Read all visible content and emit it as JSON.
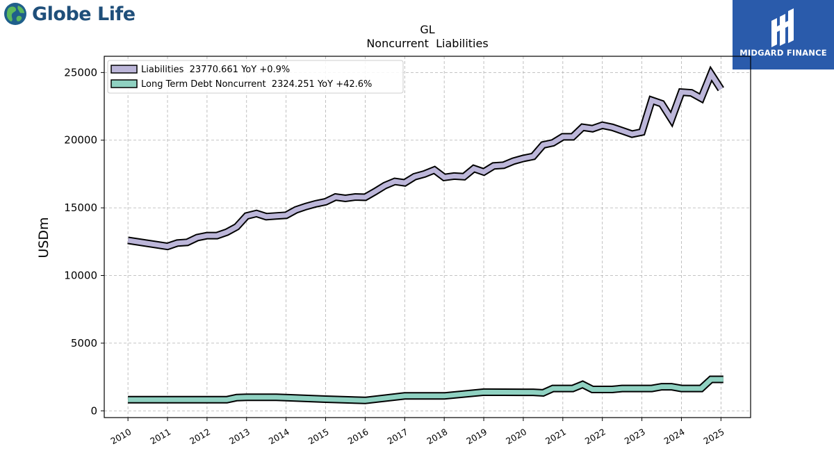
{
  "branding": {
    "left_name": "Globe Life",
    "right_name": "MIDGARD FINANCE",
    "left_icon": "globe-icon",
    "right_icon": "midgard-m-logo-icon"
  },
  "chart_data": {
    "type": "line",
    "title": "GL",
    "subtitle": "Noncurrent  Liabilities",
    "xlabel": "",
    "ylabel": "USDm",
    "xlim": [
      2009.4,
      2025.75
    ],
    "ylim": [
      -500,
      26200
    ],
    "yticks": [
      0,
      5000,
      10000,
      15000,
      20000,
      25000
    ],
    "xticks": [
      "2010",
      "2011",
      "2012",
      "2013",
      "2014",
      "2015",
      "2016",
      "2017",
      "2018",
      "2019",
      "2020",
      "2021",
      "2022",
      "2023",
      "2024",
      "2025"
    ],
    "grid": true,
    "legend_position": "top-left",
    "series": [
      {
        "name": "Liabilities  23770.661 YoY +0.9%",
        "color": "#bcb6d9",
        "points": [
          [
            2010.0,
            12600
          ],
          [
            2011.0,
            12150
          ],
          [
            2011.25,
            12400
          ],
          [
            2011.5,
            12450
          ],
          [
            2011.75,
            12800
          ],
          [
            2012.0,
            12950
          ],
          [
            2012.25,
            12950
          ],
          [
            2012.5,
            13200
          ],
          [
            2012.75,
            13600
          ],
          [
            2013.0,
            14400
          ],
          [
            2013.25,
            14580
          ],
          [
            2013.5,
            14350
          ],
          [
            2013.75,
            14400
          ],
          [
            2014.0,
            14450
          ],
          [
            2014.25,
            14850
          ],
          [
            2014.5,
            15100
          ],
          [
            2014.75,
            15300
          ],
          [
            2015.0,
            15450
          ],
          [
            2015.25,
            15800
          ],
          [
            2015.5,
            15700
          ],
          [
            2015.75,
            15800
          ],
          [
            2016.0,
            15780
          ],
          [
            2016.25,
            16200
          ],
          [
            2016.5,
            16650
          ],
          [
            2016.75,
            16950
          ],
          [
            2017.0,
            16850
          ],
          [
            2017.25,
            17300
          ],
          [
            2017.5,
            17500
          ],
          [
            2017.75,
            17800
          ],
          [
            2018.0,
            17250
          ],
          [
            2018.25,
            17350
          ],
          [
            2018.5,
            17300
          ],
          [
            2018.75,
            17900
          ],
          [
            2019.0,
            17650
          ],
          [
            2019.25,
            18100
          ],
          [
            2019.5,
            18150
          ],
          [
            2019.75,
            18450
          ],
          [
            2020.0,
            18650
          ],
          [
            2020.25,
            18800
          ],
          [
            2020.5,
            19650
          ],
          [
            2020.75,
            19800
          ],
          [
            2021.0,
            20250
          ],
          [
            2021.25,
            20250
          ],
          [
            2021.5,
            20950
          ],
          [
            2021.75,
            20850
          ],
          [
            2022.0,
            21100
          ],
          [
            2022.25,
            20950
          ],
          [
            2022.5,
            20700
          ],
          [
            2022.75,
            20450
          ],
          [
            2023.0,
            20600
          ],
          [
            2023.25,
            22950
          ],
          [
            2023.5,
            22700
          ],
          [
            2023.75,
            21550
          ],
          [
            2024.0,
            23550
          ],
          [
            2024.25,
            23500
          ],
          [
            2024.5,
            23100
          ],
          [
            2024.75,
            24900
          ],
          [
            2025.0,
            23770.661
          ]
        ]
      },
      {
        "name": "Long Term Debt Noncurrent  2324.251 YoY +42.6%",
        "color": "#8fd1c1",
        "points": [
          [
            2010.0,
            820
          ],
          [
            2011.0,
            820
          ],
          [
            2012.0,
            820
          ],
          [
            2012.5,
            820
          ],
          [
            2012.75,
            980
          ],
          [
            2013.0,
            1000
          ],
          [
            2013.75,
            1000
          ],
          [
            2014.0,
            980
          ],
          [
            2015.0,
            860
          ],
          [
            2016.0,
            770
          ],
          [
            2017.0,
            1100
          ],
          [
            2017.75,
            1100
          ],
          [
            2018.0,
            1100
          ],
          [
            2019.0,
            1380
          ],
          [
            2020.0,
            1370
          ],
          [
            2020.25,
            1370
          ],
          [
            2020.5,
            1330
          ],
          [
            2020.75,
            1650
          ],
          [
            2021.0,
            1650
          ],
          [
            2021.25,
            1650
          ],
          [
            2021.5,
            1950
          ],
          [
            2021.75,
            1580
          ],
          [
            2022.0,
            1580
          ],
          [
            2022.25,
            1580
          ],
          [
            2022.5,
            1650
          ],
          [
            2023.0,
            1650
          ],
          [
            2023.25,
            1650
          ],
          [
            2023.5,
            1780
          ],
          [
            2023.75,
            1780
          ],
          [
            2024.0,
            1650
          ],
          [
            2024.5,
            1650
          ],
          [
            2024.75,
            2324.251
          ],
          [
            2025.0,
            2324.251
          ],
          [
            2025.06,
            2324.251
          ]
        ]
      }
    ]
  }
}
